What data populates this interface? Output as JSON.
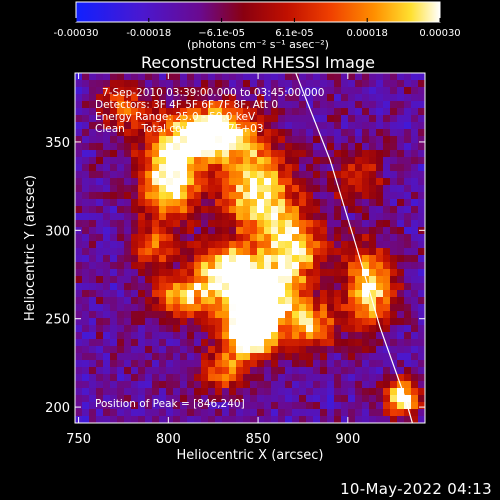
{
  "chart_data": {
    "type": "heatmap",
    "title": "Reconstructed RHESSI Image",
    "xlabel": "Heliocentric X (arcsec)",
    "ylabel": "Heliocentric Y (arcsec)",
    "xlim": [
      748,
      943
    ],
    "ylim": [
      191,
      389
    ],
    "xticks": [
      750,
      800,
      850,
      900
    ],
    "yticks": [
      200,
      250,
      300,
      350
    ],
    "colorbar": {
      "range": [
        -0.0003,
        0.0003
      ],
      "tick_labels": [
        "-0.00030",
        "-0.00018",
        "−6.1e-05",
        "6.1e-05",
        "0.00018",
        "0.00030"
      ],
      "unit_label": "(photons cm⁻² s⁻¹ asec⁻²)",
      "colors": [
        "#1020ff",
        "#5018c8",
        "#700080",
        "#a00000",
        "#e83000",
        "#ff8800",
        "#ffe020",
        "#ffffff"
      ]
    },
    "annotations": [
      "7-Sep-2010 03:39:00.000 to 03:45:00.000",
      "Detectors: 3F 4F 5F 6F 7F 8F, Att 0",
      "Energy Range: 25.0 - 50.0 keV",
      "Clean     Total counts: 7.17E+03"
    ],
    "peak_label": "Position of Peak = [846,240]",
    "peak": [
      846,
      240
    ],
    "sources": [
      {
        "x": 845,
        "y": 242,
        "sx": 10,
        "sy": 10,
        "amp": 1.0
      },
      {
        "x": 852,
        "y": 262,
        "sx": 14,
        "sy": 12,
        "amp": 0.85
      },
      {
        "x": 832,
        "y": 278,
        "sx": 12,
        "sy": 10,
        "amp": 0.7
      },
      {
        "x": 808,
        "y": 262,
        "sx": 12,
        "sy": 9,
        "amp": 0.6
      },
      {
        "x": 800,
        "y": 330,
        "sx": 12,
        "sy": 18,
        "amp": 0.75
      },
      {
        "x": 825,
        "y": 355,
        "sx": 16,
        "sy": 12,
        "amp": 0.8
      },
      {
        "x": 850,
        "y": 322,
        "sx": 14,
        "sy": 18,
        "amp": 0.7
      },
      {
        "x": 870,
        "y": 290,
        "sx": 12,
        "sy": 14,
        "amp": 0.65
      },
      {
        "x": 912,
        "y": 268,
        "sx": 10,
        "sy": 16,
        "amp": 0.7
      },
      {
        "x": 930,
        "y": 205,
        "sx": 7,
        "sy": 7,
        "amp": 0.8
      },
      {
        "x": 880,
        "y": 245,
        "sx": 10,
        "sy": 10,
        "amp": 0.55
      },
      {
        "x": 790,
        "y": 290,
        "sx": 8,
        "sy": 8,
        "amp": 0.45
      },
      {
        "x": 775,
        "y": 370,
        "sx": 10,
        "sy": 10,
        "amp": 0.4
      },
      {
        "x": 905,
        "y": 330,
        "sx": 10,
        "sy": 10,
        "amp": 0.35
      },
      {
        "x": 830,
        "y": 220,
        "sx": 10,
        "sy": 8,
        "amp": 0.45
      }
    ],
    "limb": [
      [
        871,
        389
      ],
      [
        890,
        340
      ],
      [
        905,
        290
      ],
      [
        918,
        245
      ],
      [
        932,
        205
      ],
      [
        936,
        191
      ]
    ],
    "grid": false
  },
  "footer": {
    "date": "10-May-2022 04:13"
  }
}
